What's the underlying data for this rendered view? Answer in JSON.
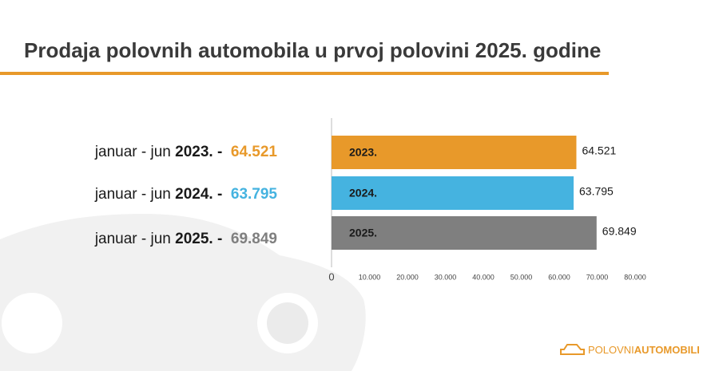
{
  "chart_data": {
    "type": "bar",
    "orientation": "horizontal",
    "title": "Prodaja polovnih automobila u prvoj polovini 2025. godine",
    "categories": [
      "2023.",
      "2024.",
      "2025."
    ],
    "values": [
      64521,
      63795,
      69849
    ],
    "value_labels": [
      "64.521",
      "63.795",
      "69.849"
    ],
    "colors": [
      "#e8992a",
      "#45b3e0",
      "#7f7f7f"
    ],
    "summary_prefix": "januar - jun",
    "summary_separator": "-",
    "xlim": [
      0,
      80000
    ],
    "xticks": [
      0,
      {
        "value": 10000,
        "label": "10.000"
      },
      {
        "value": 20000,
        "label": "20.000"
      },
      {
        "value": 30000,
        "label": "30.000"
      },
      {
        "value": 40000,
        "label": "40.000"
      },
      {
        "value": 50000,
        "label": "50.000"
      },
      {
        "value": 60000,
        "label": "60.000"
      },
      {
        "value": 70000,
        "label": "70.000"
      },
      {
        "value": 80000,
        "label": "80.000"
      }
    ],
    "logo": {
      "part1": "POLOVNI",
      "part2": "AUTOMOBILI"
    }
  }
}
